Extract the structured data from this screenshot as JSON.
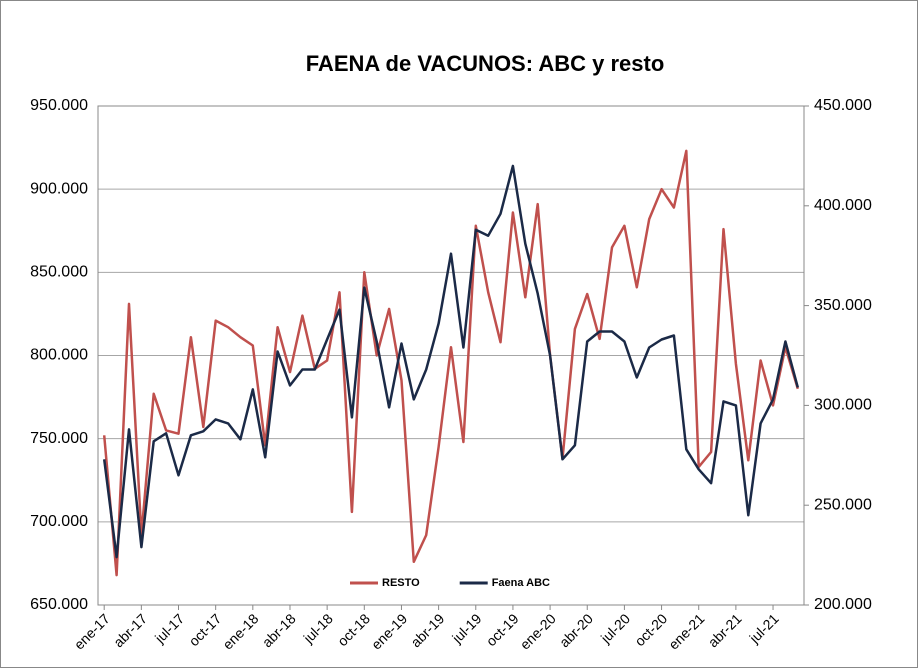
{
  "chart_data": {
    "type": "line",
    "title": "FAENA de VACUNOS: ABC y resto",
    "categories": [
      "ene-17",
      null,
      null,
      "abr-17",
      null,
      null,
      "jul-17",
      null,
      null,
      "oct-17",
      null,
      null,
      "ene-18",
      null,
      null,
      "abr-18",
      null,
      null,
      "jul-18",
      null,
      null,
      "oct-18",
      null,
      null,
      "ene-19",
      null,
      null,
      "abr-19",
      null,
      null,
      "jul-19",
      null,
      null,
      "oct-19",
      null,
      null,
      "ene-20",
      null,
      null,
      "abr-20",
      null,
      null,
      "jul-20",
      null,
      null,
      "oct-20",
      null,
      null,
      "ene-21",
      null,
      null,
      "abr-21",
      null,
      null,
      "jul-21",
      null,
      null
    ],
    "series": [
      {
        "name": "RESTO",
        "color": "#c0504d",
        "axis": "y",
        "values": [
          752000,
          668000,
          831000,
          692000,
          777000,
          755000,
          753000,
          811000,
          757000,
          821000,
          817000,
          811000,
          806000,
          746000,
          817000,
          790000,
          824000,
          792000,
          797000,
          838000,
          706000,
          850000,
          800000,
          828000,
          785000,
          676000,
          692000,
          745000,
          805000,
          748000,
          878000,
          838000,
          808000,
          886000,
          835000,
          891000,
          800000,
          738000,
          816000,
          837000,
          810000,
          865000,
          878000,
          841000,
          882000,
          900000,
          889000,
          923000,
          733000,
          742000,
          876000,
          795000,
          737000,
          797000,
          770000,
          805000,
          780000
        ]
      },
      {
        "name": "Faena ABC",
        "color": "#1b2a47",
        "axis": "y2",
        "values": [
          273000,
          224000,
          288000,
          229000,
          282000,
          286000,
          265000,
          285000,
          287000,
          293000,
          291000,
          283000,
          308000,
          274000,
          327000,
          310000,
          318000,
          318000,
          333000,
          348000,
          294000,
          359000,
          332000,
          299000,
          331000,
          303000,
          318000,
          341000,
          376000,
          329000,
          388000,
          385000,
          396000,
          420000,
          381000,
          356000,
          325000,
          273000,
          280000,
          332000,
          337000,
          337000,
          332000,
          314000,
          329000,
          333000,
          335000,
          278000,
          268000,
          261000,
          302000,
          300000,
          245000,
          291000,
          303000,
          332000,
          309000
        ]
      }
    ],
    "ylim": [
      650000,
      950000
    ],
    "yticks": [
      {
        "value": 650000,
        "label": "650.000"
      },
      {
        "value": 700000,
        "label": "700.000"
      },
      {
        "value": 750000,
        "label": "750.000"
      },
      {
        "value": 800000,
        "label": "800.000"
      },
      {
        "value": 850000,
        "label": "850.000"
      },
      {
        "value": 900000,
        "label": "900.000"
      },
      {
        "value": 950000,
        "label": "950.000"
      }
    ],
    "y2lim": [
      200000,
      450000
    ],
    "y2ticks": [
      {
        "value": 200000,
        "label": "200.000"
      },
      {
        "value": 250000,
        "label": "250.000"
      },
      {
        "value": 300000,
        "label": "300.000"
      },
      {
        "value": 350000,
        "label": "350.000"
      },
      {
        "value": 400000,
        "label": "400.000"
      },
      {
        "value": 450000,
        "label": "450.000"
      }
    ],
    "grid": true,
    "legend": "bottom"
  }
}
